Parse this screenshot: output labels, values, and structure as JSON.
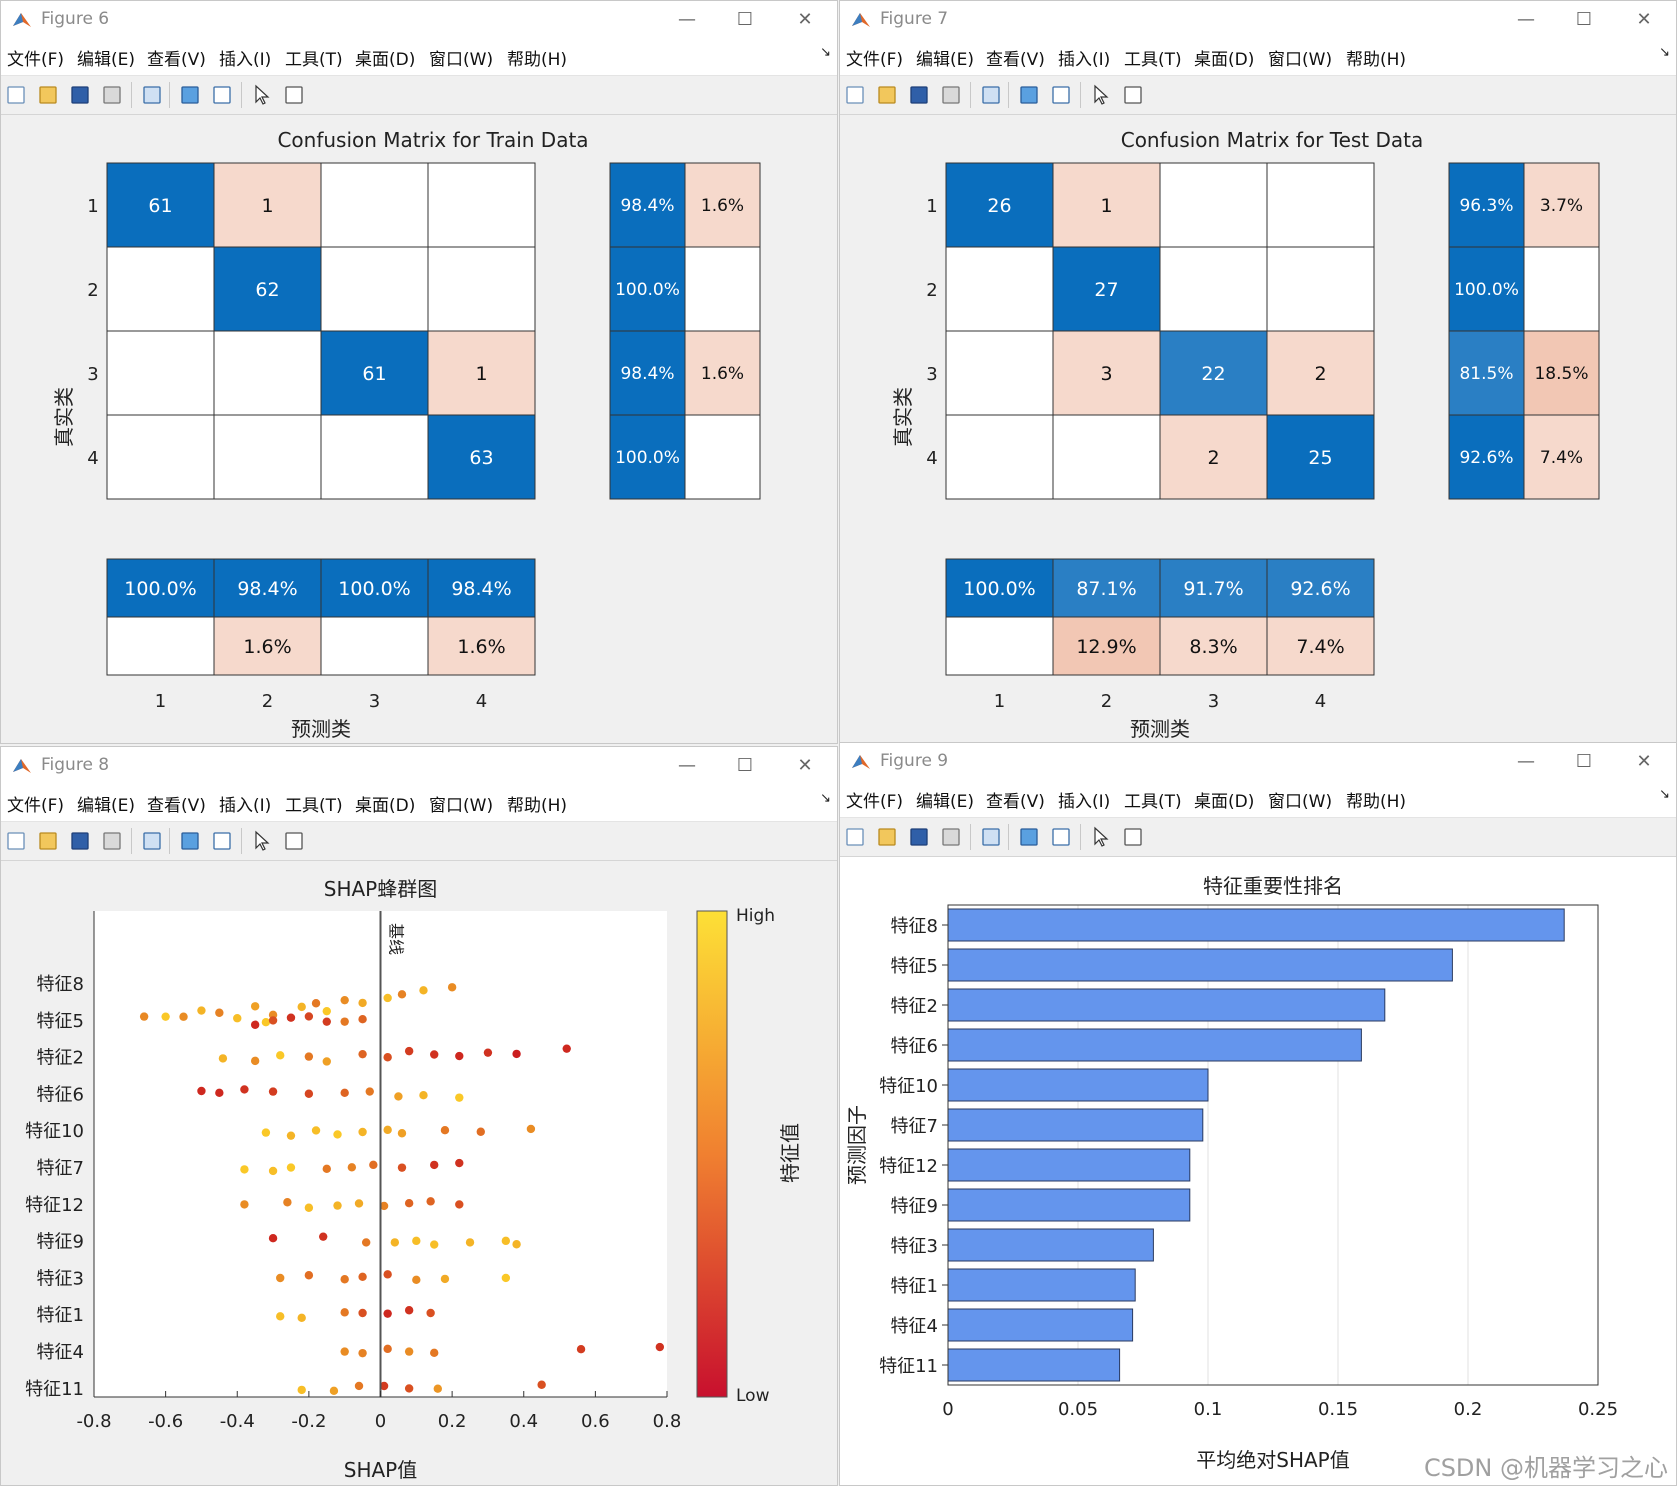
{
  "menu": [
    "文件(F)",
    "编辑(E)",
    "查看(V)",
    "插入(I)",
    "工具(T)",
    "桌面(D)",
    "窗口(W)",
    "帮助(H)"
  ],
  "colors": {
    "blue": "#0a6ebd",
    "mid_blue": "#2a7fc4",
    "pink": "#f6d9cc",
    "pink2": "#f2c7b4",
    "bar": "#6495ed"
  },
  "fig6": {
    "title": "Figure 6",
    "chart_data": {
      "type": "heatmap",
      "title": "Confusion Matrix for Train Data",
      "ylabel": "真实类",
      "xlabel": "预测类",
      "classes": [
        "1",
        "2",
        "3",
        "4"
      ],
      "matrix": [
        [
          61,
          1,
          0,
          0
        ],
        [
          0,
          62,
          0,
          0
        ],
        [
          0,
          0,
          61,
          1
        ],
        [
          0,
          0,
          0,
          63
        ]
      ],
      "row_summary": [
        [
          "98.4%",
          "1.6%"
        ],
        [
          "100.0%",
          ""
        ],
        [
          "98.4%",
          "1.6%"
        ],
        [
          "100.0%",
          ""
        ]
      ],
      "col_summary": [
        [
          "100.0%",
          "98.4%",
          "100.0%",
          "98.4%"
        ],
        [
          "",
          "1.6%",
          "",
          "1.6%"
        ]
      ]
    }
  },
  "fig7": {
    "title": "Figure 7",
    "chart_data": {
      "type": "heatmap",
      "title": "Confusion Matrix for Test Data",
      "ylabel": "真实类",
      "xlabel": "预测类",
      "classes": [
        "1",
        "2",
        "3",
        "4"
      ],
      "matrix": [
        [
          26,
          1,
          0,
          0
        ],
        [
          0,
          27,
          0,
          0
        ],
        [
          0,
          3,
          22,
          2
        ],
        [
          0,
          0,
          2,
          25
        ]
      ],
      "row_summary": [
        [
          "96.3%",
          "3.7%"
        ],
        [
          "100.0%",
          ""
        ],
        [
          "81.5%",
          "18.5%"
        ],
        [
          "92.6%",
          "7.4%"
        ]
      ],
      "col_summary": [
        [
          "100.0%",
          "87.1%",
          "91.7%",
          "92.6%"
        ],
        [
          "",
          "12.9%",
          "8.3%",
          "7.4%"
        ]
      ]
    }
  },
  "fig8": {
    "title": "Figure 8",
    "chart_data": {
      "type": "scatter",
      "title": "SHAP蜂群图",
      "xlabel": "SHAP值",
      "baseline_label": "基线",
      "features": [
        "特征8",
        "特征5",
        "特征2",
        "特征6",
        "特征10",
        "特征7",
        "特征12",
        "特征9",
        "特征3",
        "特征1",
        "特征4",
        "特征11"
      ],
      "xlim": [
        -0.8,
        0.8
      ],
      "xticks": [
        "-0.8",
        "-0.6",
        "-0.4",
        "-0.2",
        "0",
        "0.2",
        "0.4",
        "0.6",
        "0.8"
      ],
      "colorbar": {
        "label": "特征值",
        "high": "High",
        "low": "Low"
      },
      "points": [
        [
          -0.66,
          0.58,
          0.9
        ],
        [
          -0.6,
          0.9,
          0.85
        ],
        [
          -0.55,
          0.6,
          0.9
        ],
        [
          -0.5,
          0.8,
          0.7
        ],
        [
          -0.45,
          0.55,
          0.8
        ],
        [
          -0.4,
          0.85,
          0.9
        ],
        [
          -0.35,
          0.7,
          0.6
        ],
        [
          -0.32,
          0.9,
          1
        ],
        [
          -0.3,
          0.6,
          0.85
        ],
        [
          -0.22,
          0.8,
          0.6
        ],
        [
          -0.18,
          0.5,
          0.55
        ],
        [
          -0.15,
          0.9,
          0.7
        ],
        [
          -0.1,
          0.6,
          0.45
        ],
        [
          -0.05,
          0.75,
          0.5
        ],
        [
          0.02,
          0.85,
          0.35
        ],
        [
          0.06,
          0.55,
          0.3
        ],
        [
          0.12,
          0.8,
          0.15
        ],
        [
          0.2,
          0.6,
          0.1
        ],
        [
          -0.35,
          0.1,
          1.2
        ],
        [
          -0.3,
          0.3,
          1.05
        ],
        [
          -0.25,
          0.15,
          1.0
        ],
        [
          -0.2,
          0.25,
          0.95
        ],
        [
          -0.15,
          0.2,
          1.1
        ],
        [
          -0.1,
          0.5,
          1.05
        ],
        [
          -0.05,
          0.4,
          1.0
        ],
        [
          -0.44,
          0.8,
          2.0
        ],
        [
          -0.35,
          0.6,
          2.1
        ],
        [
          -0.28,
          0.9,
          1.9
        ],
        [
          -0.2,
          0.5,
          2.0
        ],
        [
          -0.15,
          0.7,
          2.1
        ],
        [
          -0.05,
          0.4,
          1.95
        ],
        [
          0.02,
          0.3,
          2.05
        ],
        [
          0.08,
          0.2,
          1.9
        ],
        [
          0.15,
          0.15,
          2.0
        ],
        [
          0.22,
          0.1,
          2.05
        ],
        [
          0.3,
          0.15,
          1.95
        ],
        [
          0.38,
          0.05,
          2.0
        ],
        [
          0.52,
          0.1,
          1.85
        ],
        [
          -0.5,
          0.1,
          3.0
        ],
        [
          -0.45,
          0.1,
          3.05
        ],
        [
          -0.38,
          0.15,
          2.95
        ],
        [
          -0.3,
          0.2,
          3.0
        ],
        [
          -0.2,
          0.25,
          3.05
        ],
        [
          -0.1,
          0.4,
          3.0
        ],
        [
          -0.03,
          0.5,
          2.95
        ],
        [
          0.05,
          0.7,
          3.05
        ],
        [
          0.12,
          0.8,
          3.0
        ],
        [
          0.22,
          0.9,
          3.05
        ],
        [
          -0.32,
          0.9,
          4.0
        ],
        [
          -0.25,
          0.8,
          4.1
        ],
        [
          -0.18,
          0.85,
          3.95
        ],
        [
          -0.12,
          0.9,
          4.05
        ],
        [
          -0.05,
          0.8,
          4.0
        ],
        [
          0.02,
          0.75,
          3.95
        ],
        [
          0.06,
          0.7,
          4.05
        ],
        [
          0.18,
          0.5,
          4.0
        ],
        [
          0.28,
          0.45,
          4.05
        ],
        [
          0.42,
          0.6,
          3.95
        ],
        [
          -0.38,
          0.9,
          5.0
        ],
        [
          -0.3,
          0.85,
          5.05
        ],
        [
          -0.25,
          0.9,
          4.95
        ],
        [
          -0.15,
          0.5,
          5.05
        ],
        [
          -0.08,
          0.55,
          5.0
        ],
        [
          -0.02,
          0.45,
          4.95
        ],
        [
          0.06,
          0.3,
          5.05
        ],
        [
          0.15,
          0.15,
          5.0
        ],
        [
          0.22,
          0.15,
          4.95
        ],
        [
          -0.38,
          0.6,
          6.0
        ],
        [
          -0.26,
          0.55,
          5.95
        ],
        [
          -0.2,
          0.85,
          6.05
        ],
        [
          -0.12,
          0.8,
          6.0
        ],
        [
          -0.06,
          0.75,
          5.95
        ],
        [
          0.01,
          0.55,
          6.05
        ],
        [
          0.08,
          0.4,
          6.0
        ],
        [
          0.14,
          0.4,
          5.95
        ],
        [
          0.22,
          0.3,
          6.05
        ],
        [
          -0.3,
          0.1,
          7.0
        ],
        [
          -0.16,
          0.15,
          6.95
        ],
        [
          -0.04,
          0.5,
          7.05
        ],
        [
          0.04,
          0.8,
          7.0
        ],
        [
          0.1,
          0.85,
          6.95
        ],
        [
          0.15,
          0.85,
          7.05
        ],
        [
          0.25,
          0.8,
          7.0
        ],
        [
          0.35,
          0.85,
          6.95
        ],
        [
          0.38,
          0.8,
          7.05
        ],
        [
          -0.28,
          0.6,
          8.0
        ],
        [
          -0.2,
          0.45,
          7.95
        ],
        [
          -0.1,
          0.5,
          8.05
        ],
        [
          -0.05,
          0.4,
          8.0
        ],
        [
          0.02,
          0.3,
          7.95
        ],
        [
          0.1,
          0.6,
          8.05
        ],
        [
          0.18,
          0.75,
          8.0
        ],
        [
          0.35,
          0.9,
          7.95
        ],
        [
          -0.28,
          0.85,
          9.0
        ],
        [
          -0.22,
          0.8,
          9.05
        ],
        [
          -0.1,
          0.5,
          8.95
        ],
        [
          -0.05,
          0.3,
          9.0
        ],
        [
          0.02,
          0.1,
          9.05
        ],
        [
          0.08,
          0.15,
          8.95
        ],
        [
          0.14,
          0.3,
          9.0
        ],
        [
          -0.1,
          0.6,
          10.0
        ],
        [
          -0.05,
          0.55,
          10.05
        ],
        [
          0.02,
          0.45,
          9.95
        ],
        [
          0.08,
          0.6,
          10.0
        ],
        [
          0.15,
          0.5,
          10.05
        ],
        [
          0.56,
          0.2,
          10.0
        ],
        [
          0.78,
          0.15,
          9.95
        ],
        [
          -0.22,
          0.85,
          11.0
        ],
        [
          -0.13,
          0.7,
          11.05
        ],
        [
          -0.06,
          0.5,
          10.95
        ],
        [
          0.01,
          0.2,
          11.0
        ],
        [
          0.08,
          0.3,
          11.05
        ],
        [
          0.16,
          0.65,
          11.0
        ],
        [
          0.45,
          0.3,
          10.95
        ]
      ]
    }
  },
  "fig9": {
    "title": "Figure 9",
    "chart_data": {
      "type": "bar",
      "title": "特征重要性排名",
      "ylabel": "预测因子",
      "xlabel": "平均绝对SHAP值",
      "categories": [
        "特征8",
        "特征5",
        "特征2",
        "特征6",
        "特征10",
        "特征7",
        "特征12",
        "特征9",
        "特征3",
        "特征1",
        "特征4",
        "特征11"
      ],
      "values": [
        0.237,
        0.194,
        0.168,
        0.159,
        0.1,
        0.098,
        0.093,
        0.093,
        0.079,
        0.072,
        0.071,
        0.066
      ],
      "xlim": [
        0,
        0.25
      ],
      "xticks": [
        "0",
        "0.05",
        "0.1",
        "0.15",
        "0.2",
        "0.25"
      ]
    }
  },
  "corner_text": "CSDN @机器学习之心"
}
